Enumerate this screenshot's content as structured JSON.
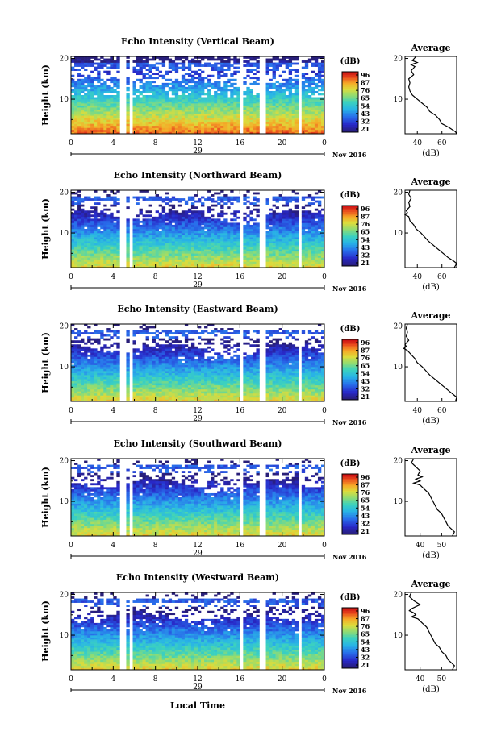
{
  "figure": {
    "xlabel": "Local Time",
    "date_label": "Nov 2016",
    "colorbar_unit": "(dB)",
    "colorbar_ticks": [
      "96",
      "87",
      "76",
      "65",
      "54",
      "43",
      "32",
      "21"
    ],
    "avg_title": "Average",
    "avg_xlabel": "(dB)",
    "height_label": "Height (km)"
  },
  "chart_data": [
    {
      "type": "heatmap",
      "title": "Echo Intensity (Vertical Beam)",
      "ylabel": "Height (km)",
      "x_ticks": [
        "0",
        "4",
        "8",
        "12",
        "16",
        "20",
        "0"
      ],
      "day_label": "29",
      "y_ticks": [
        "20",
        "10"
      ],
      "xlim": [
        0,
        24
      ],
      "ylim": [
        1.5,
        20.5
      ],
      "data_gaps_hours": [
        [
          4.7,
          5.1
        ],
        [
          5.5,
          5.9
        ],
        [
          16.0,
          16.3
        ],
        [
          17.9,
          18.4
        ],
        [
          21.4,
          21.7
        ]
      ],
      "colorbar_range_db": [
        21,
        96
      ],
      "average_profile": {
        "title": "Average",
        "xlabel": "(dB)",
        "x_ticks": [
          "40",
          "60"
        ],
        "xlim": [
          30,
          72
        ],
        "points": [
          [
            20.5,
            39
          ],
          [
            19.5,
            36
          ],
          [
            19,
            40
          ],
          [
            18.5,
            35
          ],
          [
            18,
            38
          ],
          [
            17,
            35
          ],
          [
            16,
            37
          ],
          [
            15,
            33
          ],
          [
            14,
            34
          ],
          [
            13,
            33
          ],
          [
            12,
            34
          ],
          [
            11,
            36
          ],
          [
            10,
            40
          ],
          [
            9,
            44
          ],
          [
            8,
            48
          ],
          [
            7,
            50
          ],
          [
            6,
            55
          ],
          [
            5,
            58
          ],
          [
            4,
            60
          ],
          [
            3,
            66
          ],
          [
            2,
            71
          ],
          [
            1.5,
            72
          ]
        ]
      }
    },
    {
      "type": "heatmap",
      "title": "Echo Intensity (Northward Beam)",
      "ylabel": "Height (km)",
      "x_ticks": [
        "0",
        "4",
        "8",
        "12",
        "16",
        "20",
        "0"
      ],
      "day_label": "29",
      "y_ticks": [
        "20",
        "10"
      ],
      "xlim": [
        0,
        24
      ],
      "ylim": [
        1.5,
        20.5
      ],
      "data_gaps_hours": [
        [
          4.7,
          5.1
        ],
        [
          5.5,
          5.9
        ],
        [
          16.0,
          16.3
        ],
        [
          17.9,
          18.4
        ],
        [
          21.4,
          21.7
        ]
      ],
      "colorbar_range_db": [
        21,
        96
      ],
      "average_profile": {
        "title": "Average",
        "xlabel": "(dB)",
        "x_ticks": [
          "40",
          "60"
        ],
        "xlim": [
          30,
          72
        ],
        "points": [
          [
            20.5,
            34
          ],
          [
            19.5,
            33
          ],
          [
            18.5,
            35
          ],
          [
            17.5,
            33
          ],
          [
            16.5,
            34
          ],
          [
            15.5,
            31
          ],
          [
            15,
            32
          ],
          [
            14.5,
            30
          ],
          [
            14,
            33
          ],
          [
            13,
            34
          ],
          [
            12,
            37
          ],
          [
            11,
            39
          ],
          [
            10,
            43
          ],
          [
            9,
            46
          ],
          [
            8,
            49
          ],
          [
            7,
            53
          ],
          [
            6,
            57
          ],
          [
            5,
            61
          ],
          [
            4,
            65
          ],
          [
            3,
            70
          ],
          [
            2.5,
            72
          ],
          [
            1.5,
            70
          ]
        ]
      }
    },
    {
      "type": "heatmap",
      "title": "Echo Intensity (Eastward Beam)",
      "ylabel": "Height (km)",
      "x_ticks": [
        "0",
        "4",
        "8",
        "12",
        "16",
        "20",
        "0"
      ],
      "day_label": "29",
      "y_ticks": [
        "20",
        "10"
      ],
      "xlim": [
        0,
        24
      ],
      "ylim": [
        1.5,
        20.5
      ],
      "data_gaps_hours": [
        [
          4.7,
          5.1
        ],
        [
          5.5,
          5.9
        ],
        [
          16.0,
          16.3
        ],
        [
          17.9,
          18.4
        ],
        [
          21.4,
          21.7
        ]
      ],
      "colorbar_range_db": [
        21,
        96
      ],
      "average_profile": {
        "title": "Average",
        "xlabel": "(dB)",
        "x_ticks": [
          "40",
          "60"
        ],
        "xlim": [
          30,
          72
        ],
        "points": [
          [
            20.5,
            32
          ],
          [
            19.5,
            31
          ],
          [
            18.5,
            32
          ],
          [
            17.5,
            31
          ],
          [
            16.5,
            33
          ],
          [
            15.5,
            30
          ],
          [
            15,
            31
          ],
          [
            14.5,
            29
          ],
          [
            14,
            32
          ],
          [
            13,
            35
          ],
          [
            12,
            38
          ],
          [
            11,
            40
          ],
          [
            10,
            44
          ],
          [
            9,
            47
          ],
          [
            8,
            50
          ],
          [
            7,
            54
          ],
          [
            6,
            58
          ],
          [
            5,
            62
          ],
          [
            4,
            66
          ],
          [
            3,
            70
          ],
          [
            2.5,
            72
          ],
          [
            1.5,
            71
          ]
        ]
      }
    },
    {
      "type": "heatmap",
      "title": "Echo Intensity (Southward Beam)",
      "ylabel": "Height (km)",
      "x_ticks": [
        "0",
        "4",
        "8",
        "12",
        "16",
        "20",
        "0"
      ],
      "day_label": "29",
      "y_ticks": [
        "20",
        "10"
      ],
      "xlim": [
        0,
        24
      ],
      "ylim": [
        1.5,
        20.5
      ],
      "data_gaps_hours": [
        [
          4.7,
          5.1
        ],
        [
          5.5,
          5.9
        ],
        [
          16.0,
          16.3
        ],
        [
          17.9,
          18.4
        ],
        [
          21.4,
          21.7
        ]
      ],
      "colorbar_range_db": [
        21,
        96
      ],
      "average_profile": {
        "title": "Average",
        "xlabel": "(dB)",
        "x_ticks": [
          "40",
          "50"
        ],
        "xlim": [
          33,
          57
        ],
        "points": [
          [
            20.5,
            37
          ],
          [
            19.5,
            36
          ],
          [
            18.5,
            38
          ],
          [
            17.5,
            40
          ],
          [
            16.5,
            39
          ],
          [
            16,
            41
          ],
          [
            15.5,
            38
          ],
          [
            15,
            40
          ],
          [
            14.5,
            37
          ],
          [
            14,
            40
          ],
          [
            13,
            42
          ],
          [
            12,
            44
          ],
          [
            11,
            45
          ],
          [
            10,
            46
          ],
          [
            9,
            47
          ],
          [
            8,
            48
          ],
          [
            7,
            50
          ],
          [
            6,
            51
          ],
          [
            5,
            52
          ],
          [
            4,
            53
          ],
          [
            3,
            55
          ],
          [
            2.5,
            56
          ],
          [
            1.5,
            55
          ]
        ]
      }
    },
    {
      "type": "heatmap",
      "title": "Echo Intensity (Westward Beam)",
      "ylabel": "Height (km)",
      "x_ticks": [
        "0",
        "4",
        "8",
        "12",
        "16",
        "20",
        "0"
      ],
      "day_label": "29",
      "y_ticks": [
        "20",
        "10"
      ],
      "xlim": [
        0,
        24
      ],
      "ylim": [
        1.5,
        20.5
      ],
      "data_gaps_hours": [
        [
          4.7,
          5.1
        ],
        [
          5.5,
          5.9
        ],
        [
          16.0,
          16.3
        ],
        [
          17.9,
          18.4
        ],
        [
          21.4,
          21.7
        ]
      ],
      "colorbar_range_db": [
        21,
        96
      ],
      "average_profile": {
        "title": "Average",
        "xlabel": "(dB)",
        "x_ticks": [
          "40",
          "50"
        ],
        "xlim": [
          33,
          57
        ],
        "points": [
          [
            20.5,
            36
          ],
          [
            19.5,
            35
          ],
          [
            18.5,
            37
          ],
          [
            17.5,
            40
          ],
          [
            17,
            38
          ],
          [
            16.5,
            36
          ],
          [
            16,
            35
          ],
          [
            15.5,
            37
          ],
          [
            15,
            38
          ],
          [
            14.5,
            36
          ],
          [
            14,
            39
          ],
          [
            13,
            41
          ],
          [
            12,
            43
          ],
          [
            11,
            44
          ],
          [
            10,
            45
          ],
          [
            9,
            46
          ],
          [
            8,
            47
          ],
          [
            7,
            49
          ],
          [
            6,
            50
          ],
          [
            5,
            52
          ],
          [
            4,
            53
          ],
          [
            3,
            55
          ],
          [
            2.5,
            56
          ],
          [
            1.5,
            55
          ]
        ]
      }
    }
  ]
}
